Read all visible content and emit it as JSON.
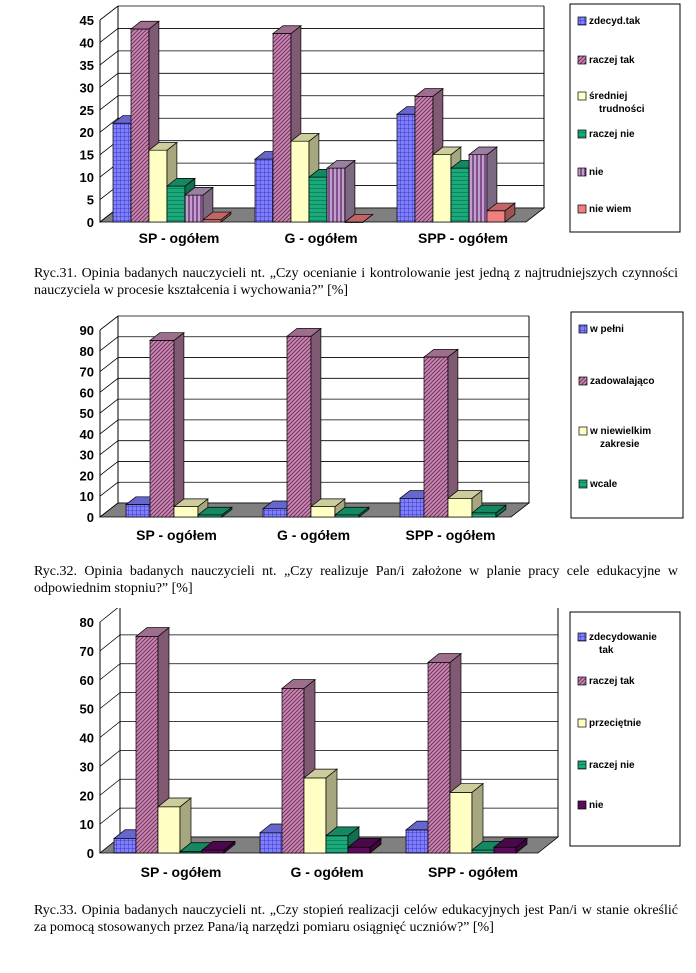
{
  "captions": [
    "Ryc.31. Opinia badanych nauczycieli nt. „Czy ocenianie i kontrolowanie jest jedną z najtrudniejszych czynności nauczyciela w procesie kształcenia i wychowania?” [%]",
    "Ryc.32. Opinia badanych nauczycieli nt. „Czy realizuje Pan/i założone w planie pracy cele edukacyjne w odpowiednim stopniu?” [%]",
    "Ryc.33. Opinia badanych nauczycieli nt. „Czy stopień realizacji celów edukacyjnych jest Pan/i w stanie określić za pomocą stosowanych przez Pana/ią narzędzi pomiaru osiągnięć uczniów?” [%]"
  ],
  "chart_data": [
    {
      "type": "bar",
      "categories": [
        "SP - ogółem",
        "G - ogółem",
        "SPP - ogółem"
      ],
      "ylim": [
        0,
        45
      ],
      "yticks": [
        0,
        5,
        10,
        15,
        20,
        25,
        30,
        35,
        40,
        45
      ],
      "grid": true,
      "legend_position": "right",
      "series": [
        {
          "name": "zdecyd.tak",
          "values": [
            22,
            14,
            24
          ],
          "color": "#7f7fff",
          "pattern": "grid"
        },
        {
          "name": "raczej tak",
          "values": [
            43,
            42,
            28
          ],
          "color": "#c58bb0",
          "pattern": "diag"
        },
        {
          "name": "średniej trudności",
          "values": [
            16,
            18,
            15
          ],
          "color": "#ffffc4",
          "pattern": "solid"
        },
        {
          "name": "raczej nie",
          "values": [
            8,
            10,
            12
          ],
          "color": "#1aa97a",
          "pattern": "hstripe"
        },
        {
          "name": "nie",
          "values": [
            6,
            12,
            15
          ],
          "color": "#c0a0c8",
          "pattern": "vstripe"
        },
        {
          "name": "nie wiem",
          "values": [
            0.5,
            0,
            2.5
          ],
          "color": "#f08080",
          "pattern": "solid"
        }
      ]
    },
    {
      "type": "bar",
      "categories": [
        "SP - ogółem",
        "G - ogółem",
        "SPP - ogółem"
      ],
      "ylim": [
        0,
        90
      ],
      "yticks": [
        0,
        10,
        20,
        30,
        40,
        50,
        60,
        70,
        80,
        90
      ],
      "grid": true,
      "legend_position": "right",
      "series": [
        {
          "name": "w pełni",
          "values": [
            6,
            4,
            9
          ],
          "color": "#7f7fff",
          "pattern": "grid"
        },
        {
          "name": "zadowalająco",
          "values": [
            85,
            87,
            77
          ],
          "color": "#c58bb0",
          "pattern": "diag"
        },
        {
          "name": "w niewielkim zakresie",
          "values": [
            5,
            5,
            9
          ],
          "color": "#ffffc4",
          "pattern": "solid"
        },
        {
          "name": "wcale",
          "values": [
            1,
            1,
            2
          ],
          "color": "#1aa97a",
          "pattern": "hstripe"
        }
      ]
    },
    {
      "type": "bar",
      "categories": [
        "SP - ogółem",
        "G - ogółem",
        "SPP - ogółem"
      ],
      "ylim": [
        0,
        80
      ],
      "yticks": [
        0,
        10,
        20,
        30,
        40,
        50,
        60,
        70,
        80
      ],
      "grid": true,
      "legend_position": "right",
      "series": [
        {
          "name": "zdecydowanie tak",
          "values": [
            5,
            7,
            8
          ],
          "color": "#7f7fff",
          "pattern": "grid"
        },
        {
          "name": "raczej tak",
          "values": [
            75,
            57,
            66
          ],
          "color": "#c58bb0",
          "pattern": "diag"
        },
        {
          "name": "przeciętnie",
          "values": [
            16,
            26,
            21
          ],
          "color": "#ffffc4",
          "pattern": "solid"
        },
        {
          "name": "raczej nie",
          "values": [
            0.5,
            6,
            1
          ],
          "color": "#1aa97a",
          "pattern": "hstripe"
        },
        {
          "name": "nie",
          "values": [
            1,
            2,
            2
          ],
          "color": "#5c0a5c",
          "pattern": "solid"
        }
      ]
    }
  ]
}
